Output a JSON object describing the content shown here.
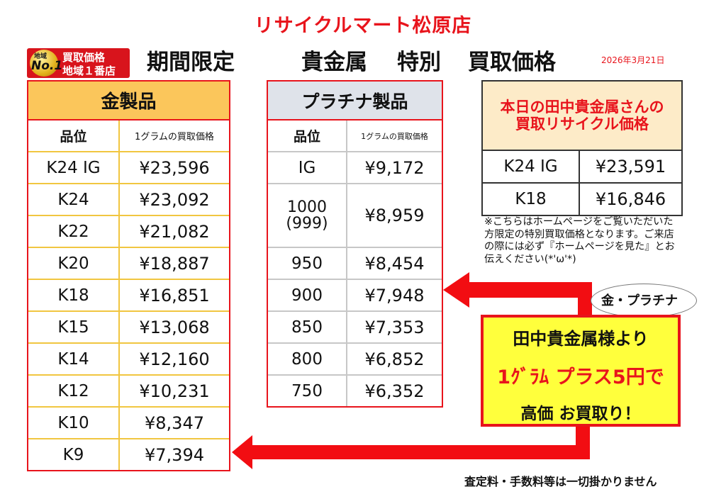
{
  "store_name": "リサイクルマート松原店",
  "badge": {
    "medal_small": "地域",
    "medal_main": "No.1",
    "line1": "買取価格",
    "line2": "地域１番店"
  },
  "headline": {
    "part1": "期間限定",
    "part2": "貴金属",
    "part3": "特別",
    "part4": "買取価格"
  },
  "date": "2026年3月21日",
  "gold": {
    "title": "金製品",
    "col_grade": "品位",
    "col_price": "1グラムの買取価格",
    "rows": [
      {
        "grade": "K24 IG",
        "price": "¥23,596"
      },
      {
        "grade": "K24",
        "price": "¥23,092"
      },
      {
        "grade": "K22",
        "price": "¥21,082"
      },
      {
        "grade": "K20",
        "price": "¥18,887"
      },
      {
        "grade": "K18",
        "price": "¥16,851"
      },
      {
        "grade": "K15",
        "price": "¥13,068"
      },
      {
        "grade": "K14",
        "price": "¥12,160"
      },
      {
        "grade": "K12",
        "price": "¥10,231"
      },
      {
        "grade": "K10",
        "price": "¥8,347"
      },
      {
        "grade": "K9",
        "price": "¥7,394"
      }
    ]
  },
  "platinum": {
    "title": "プラチナ製品",
    "col_grade": "品位",
    "col_price": "1グラムの買取価格",
    "rows": [
      {
        "grade": "IG",
        "price": "¥9,172"
      },
      {
        "grade": "1000",
        "grade2": "(999)",
        "price": "¥8,959"
      },
      {
        "grade": "950",
        "price": "¥8,454"
      },
      {
        "grade": "900",
        "price": "¥7,948"
      },
      {
        "grade": "850",
        "price": "¥7,353"
      },
      {
        "grade": "800",
        "price": "¥6,852"
      },
      {
        "grade": "750",
        "price": "¥6,352"
      }
    ]
  },
  "tanaka": {
    "title_line1": "本日の田中貴金属さんの",
    "title_line2": "買取リサイクル価格",
    "rows": [
      {
        "grade": "K24 IG",
        "price": "¥23,591"
      },
      {
        "grade": "K18",
        "price": "¥16,846"
      }
    ]
  },
  "note": "※こちらはホームページをご覧いただいた方限定の特別買取価格となります。ご来店の際には必ず『ホームページを見た』とお伝えください(*'ω'*)",
  "bubble": "金・プラチナ",
  "bonus": {
    "line1": "田中貴金属様より",
    "line2": "1ｸﾞﾗﾑ プラス5円で",
    "line3": "高価 お買取り！"
  },
  "footer": "査定料・手数料等は一切掛かりません",
  "colors": {
    "accent_red": "#e8141c",
    "gold_header": "#fbc65b",
    "platinum_header": "#dfe3ea",
    "bonus_yellow": "#ffff3c"
  }
}
